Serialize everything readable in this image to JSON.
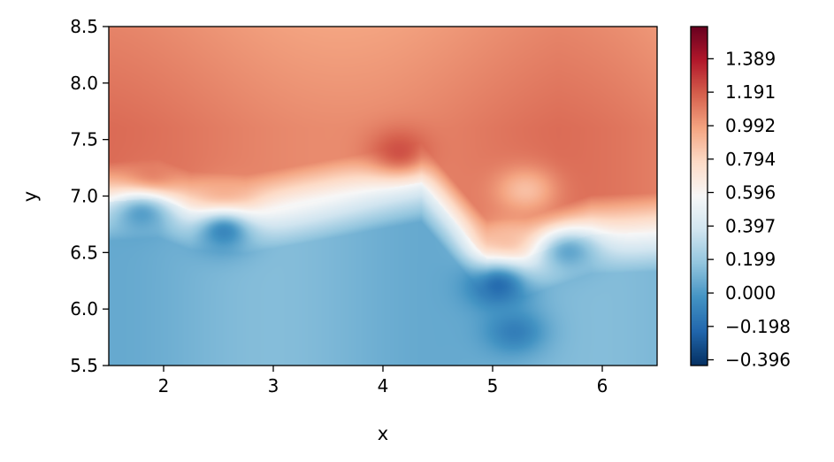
{
  "chart_data": {
    "type": "heatmap",
    "title": "",
    "xlabel": "x",
    "ylabel": "y",
    "xlim": [
      1.5,
      6.5
    ],
    "ylim": [
      5.5,
      8.5
    ],
    "x_ticks": [
      2,
      3,
      4,
      5,
      6
    ],
    "x_tick_labels": [
      "2",
      "3",
      "4",
      "5",
      "6"
    ],
    "y_ticks": [
      5.5,
      6.0,
      6.5,
      7.0,
      7.5,
      8.0,
      8.5
    ],
    "y_tick_labels": [
      "5.5",
      "6.0",
      "6.5",
      "7.0",
      "7.5",
      "8.0",
      "8.5"
    ],
    "colorbar": {
      "colormap": "RdBu_r",
      "vmin": -0.43,
      "vmax": 1.58,
      "ticks": [
        1.389,
        1.191,
        0.992,
        0.794,
        0.596,
        0.397,
        0.199,
        0.0,
        -0.198,
        -0.396
      ],
      "tick_labels": [
        "1.389",
        "1.191",
        "0.992",
        "0.794",
        "0.596",
        "0.397",
        "0.199",
        "0.000",
        "−0.198",
        "−0.396"
      ]
    },
    "field": {
      "description_of_structure": "positive values above a jagged boundary, lower values below",
      "boundary": [
        [
          1.5,
          6.95
        ],
        [
          1.95,
          6.98
        ],
        [
          2.25,
          6.87
        ],
        [
          2.75,
          6.84
        ],
        [
          3.5,
          6.97
        ],
        [
          4.0,
          7.06
        ],
        [
          4.35,
          7.12
        ],
        [
          4.95,
          6.44
        ],
        [
          5.3,
          6.46
        ],
        [
          5.9,
          6.66
        ],
        [
          6.5,
          6.68
        ]
      ],
      "hotspots": [
        {
          "x": 4.15,
          "y": 7.4,
          "value": 1.22
        },
        {
          "x": 1.88,
          "y": 7.15,
          "value": 1.12
        },
        {
          "x": 2.55,
          "y": 6.95,
          "value": 1.0
        },
        {
          "x": 5.15,
          "y": 6.6,
          "value": 0.9
        },
        {
          "x": 5.3,
          "y": 7.05,
          "value": 0.88
        },
        {
          "x": 5.05,
          "y": 6.2,
          "value": -0.2
        },
        {
          "x": 5.2,
          "y": 5.8,
          "value": -0.12
        },
        {
          "x": 2.55,
          "y": 6.68,
          "value": -0.08
        },
        {
          "x": 1.8,
          "y": 6.83,
          "value": 0.02
        },
        {
          "x": 5.7,
          "y": 6.5,
          "value": 0.05
        }
      ]
    }
  }
}
